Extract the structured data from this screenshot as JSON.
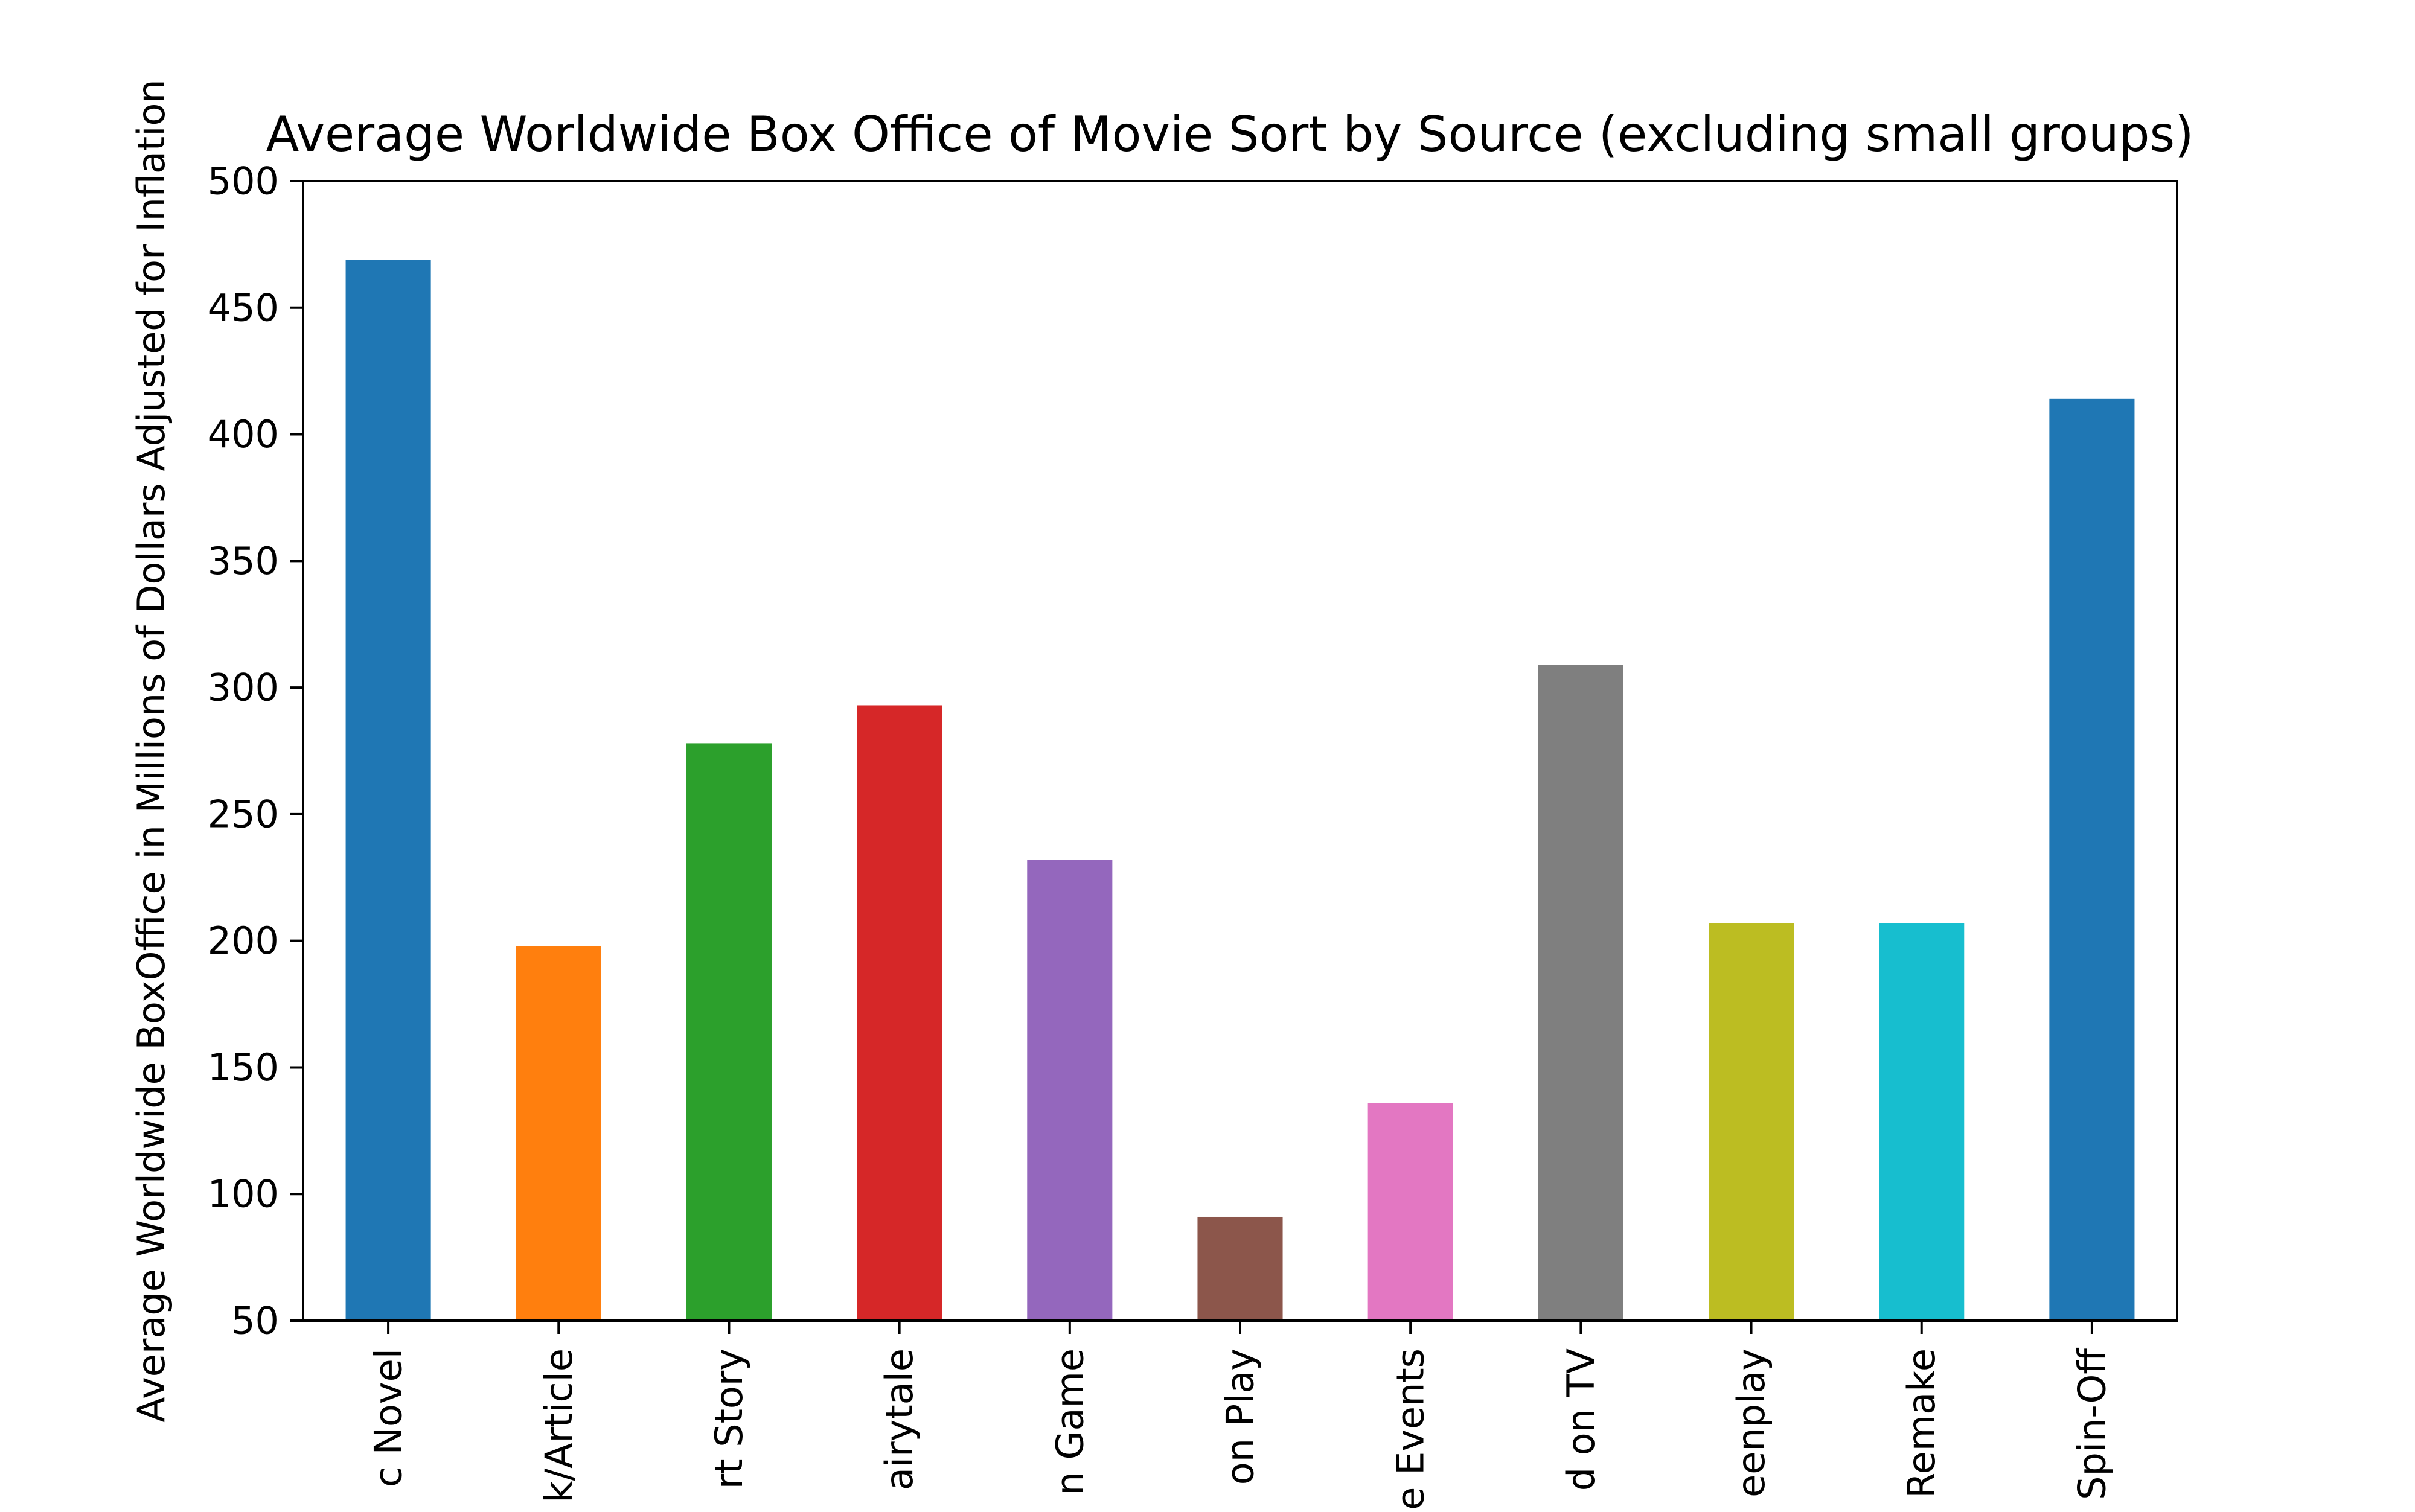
{
  "chart_data": {
    "type": "bar",
    "title": "Average Worldwide Box Office of Movie Sort by Source (excluding small groups)",
    "xlabel": "",
    "ylabel": "Average Worldwide BoxOffice in Millions of Dollars Adjusted for Inflation",
    "categories": [
      "Based on Comic/Graphic Novel",
      "Based on Book/Article",
      "Based on Short Story",
      "Based on Folk Tale/Legend/Fairytale",
      "Based on Game",
      "Based on Play",
      "Based on Real Life Events",
      "Based on TV",
      "Original Screenplay",
      "Remake",
      "Spin-Off"
    ],
    "visible_tick_labels": [
      "c Novel",
      "k/Article",
      "rt Story",
      "airytale",
      "n Game",
      "on Play",
      "e Events",
      "d on TV",
      "eenplay",
      "Remake",
      "Spin-Off"
    ],
    "values": [
      469,
      198,
      278,
      293,
      232,
      91,
      136,
      309,
      207,
      207,
      414
    ],
    "colors": [
      "#1f77b4",
      "#ff7f0e",
      "#2ca02c",
      "#d62728",
      "#9467bd",
      "#8c564b",
      "#e377c2",
      "#7f7f7f",
      "#bcbd22",
      "#17becf",
      "#1f77b4"
    ],
    "ylim": [
      50,
      500
    ],
    "yticks": [
      50,
      100,
      150,
      200,
      250,
      300,
      350,
      400,
      450,
      500
    ],
    "grid": false,
    "legend": "none"
  }
}
